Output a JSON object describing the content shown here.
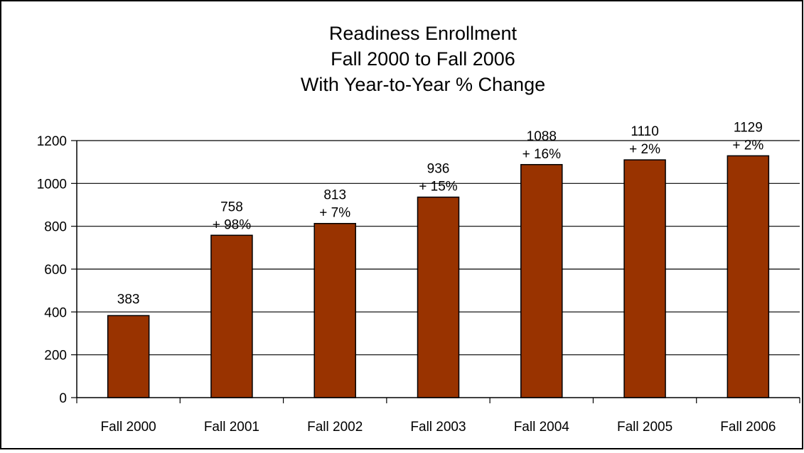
{
  "chart_data": {
    "type": "bar",
    "title": [
      "Readiness Enrollment",
      "Fall 2000 to Fall 2006",
      "With Year-to-Year % Change"
    ],
    "categories": [
      "Fall 2000",
      "Fall 2001",
      "Fall 2002",
      "Fall 2003",
      "Fall 2004",
      "Fall 2005",
      "Fall 2006"
    ],
    "values": [
      383,
      758,
      813,
      936,
      1088,
      1110,
      1129
    ],
    "value_labels": [
      "383",
      "758",
      "813",
      "936",
      "1088",
      "1110",
      "1129"
    ],
    "change_labels": [
      "",
      "+ 98%",
      "+ 7%",
      "+ 15%",
      "+ 16%",
      "+ 2%",
      "+ 2%"
    ],
    "y_ticks": [
      0,
      200,
      400,
      600,
      800,
      1000,
      1200
    ],
    "y_tick_labels": [
      "0",
      "200",
      "400",
      "600",
      "800",
      "1000",
      "1200"
    ],
    "ylim": [
      0,
      1200
    ],
    "grid": true,
    "legend": "none",
    "bar_color": "#993300",
    "xlabel": "",
    "ylabel": ""
  }
}
